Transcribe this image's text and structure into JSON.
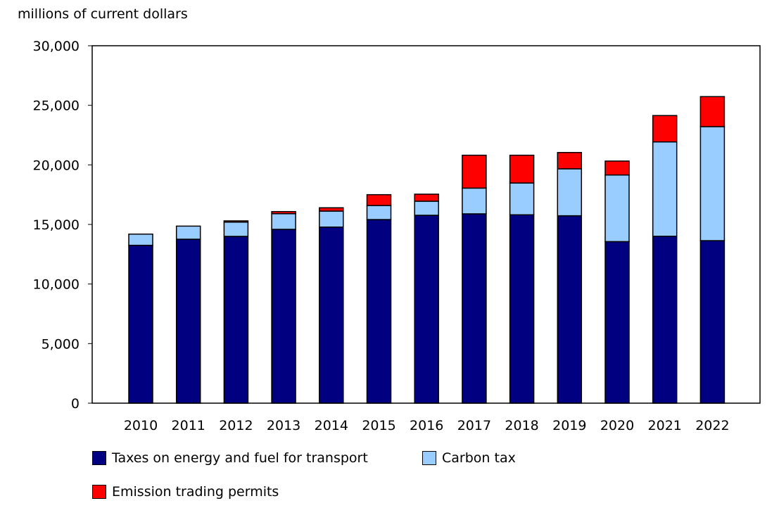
{
  "chart_data": {
    "type": "bar",
    "stacked": true,
    "ylabel": "millions of current dollars",
    "ylim": [
      0,
      30000
    ],
    "yticks": [
      0,
      5000,
      10000,
      15000,
      20000,
      25000,
      30000
    ],
    "ytick_labels": [
      "0",
      "5,000",
      "10,000",
      "15,000",
      "20,000",
      "25,000",
      "30,000"
    ],
    "categories": [
      "2010",
      "2011",
      "2012",
      "2013",
      "2014",
      "2015",
      "2016",
      "2017",
      "2018",
      "2019",
      "2020",
      "2021",
      "2022"
    ],
    "series": [
      {
        "name": "Taxes on energy and fuel for transport",
        "color": "#000080",
        "values": [
          13250,
          13760,
          14000,
          14590,
          14780,
          15410,
          15770,
          15890,
          15810,
          15730,
          13560,
          14010,
          13640
        ]
      },
      {
        "name": "Carbon tax",
        "color": "#99ccff",
        "values": [
          940,
          1100,
          1200,
          1310,
          1340,
          1180,
          1180,
          2160,
          2670,
          3940,
          5590,
          7920,
          9570
        ]
      },
      {
        "name": "Emission trading permits",
        "color": "#ff0000",
        "values": [
          0,
          0,
          100,
          180,
          280,
          910,
          590,
          2760,
          2330,
          1370,
          1170,
          2210,
          2520
        ]
      }
    ],
    "grid": false,
    "legend_position": "bottom"
  }
}
